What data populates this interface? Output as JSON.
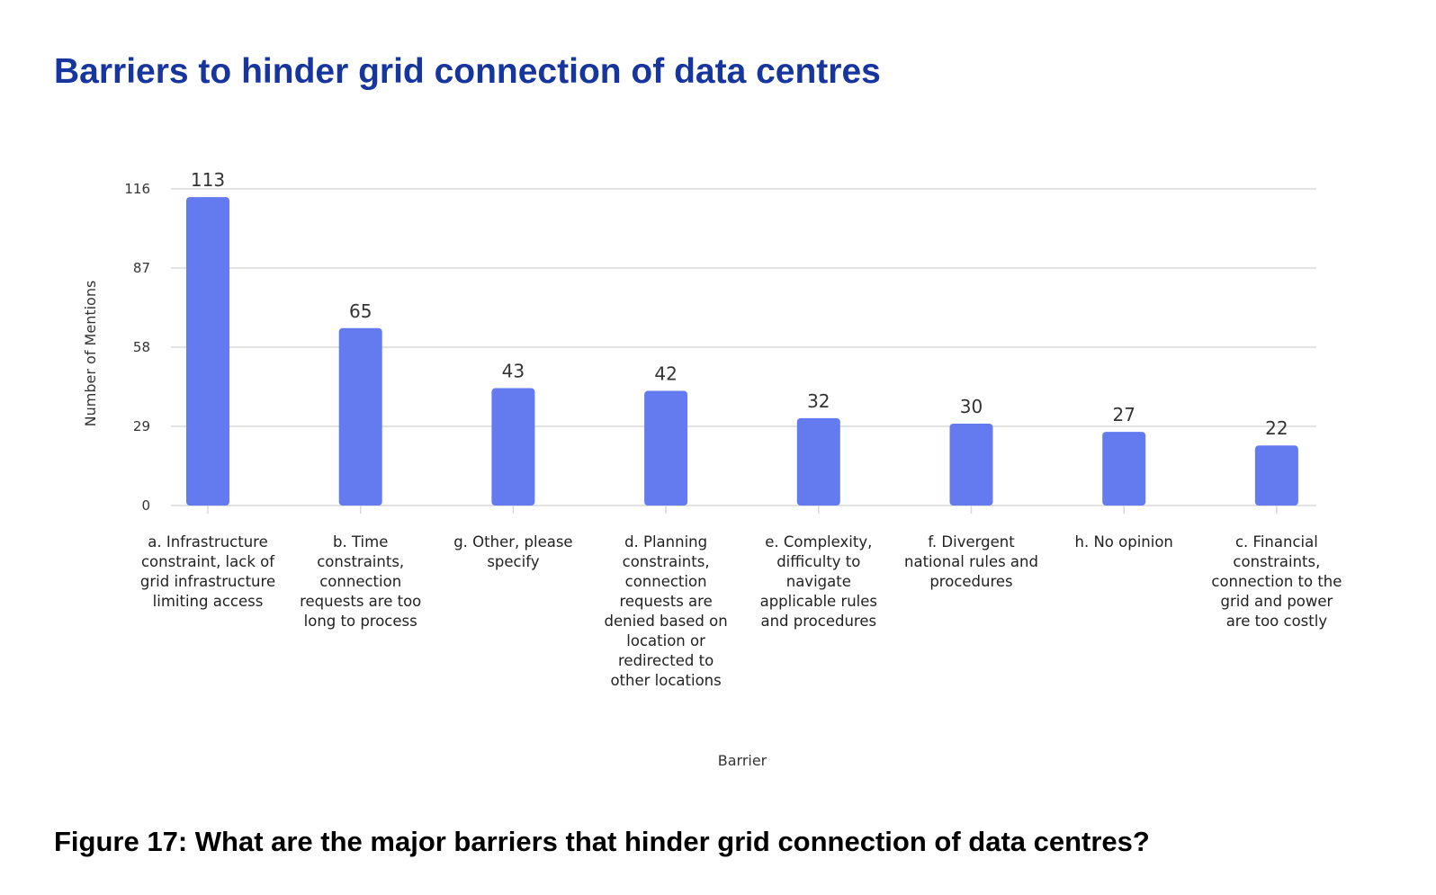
{
  "title": "Barriers to hinder grid connection of data centres",
  "caption": "Figure 17: What are the major barriers that hinder grid connection of data centres?",
  "chart_data": {
    "type": "bar",
    "title": "Barriers to hinder grid connection of data centres",
    "xlabel": "Barrier",
    "ylabel": "Number of Mentions",
    "ylim": [
      0,
      116
    ],
    "yticks": [
      0,
      29,
      58,
      87,
      116
    ],
    "grid": true,
    "bar_color": "#637bef",
    "categories": [
      [
        "a. Infrastructure",
        "constraint, lack of",
        "grid infrastructure",
        "limiting access"
      ],
      [
        "b. Time",
        "constraints,",
        "connection",
        "requests are too",
        "long to process"
      ],
      [
        "g. Other, please",
        "specify"
      ],
      [
        "d. Planning",
        "constraints,",
        "connection",
        "requests are",
        "denied based on",
        "location or",
        "redirected to",
        "other locations"
      ],
      [
        "e. Complexity,",
        "difficulty to",
        "navigate",
        "applicable rules",
        "and procedures"
      ],
      [
        "f. Divergent",
        "national rules and",
        "procedures"
      ],
      [
        "h. No opinion"
      ],
      [
        "c. Financial",
        "constraints,",
        "connection to the",
        "grid and power",
        "are too costly"
      ]
    ],
    "values": [
      113,
      65,
      43,
      42,
      32,
      30,
      27,
      22
    ]
  }
}
